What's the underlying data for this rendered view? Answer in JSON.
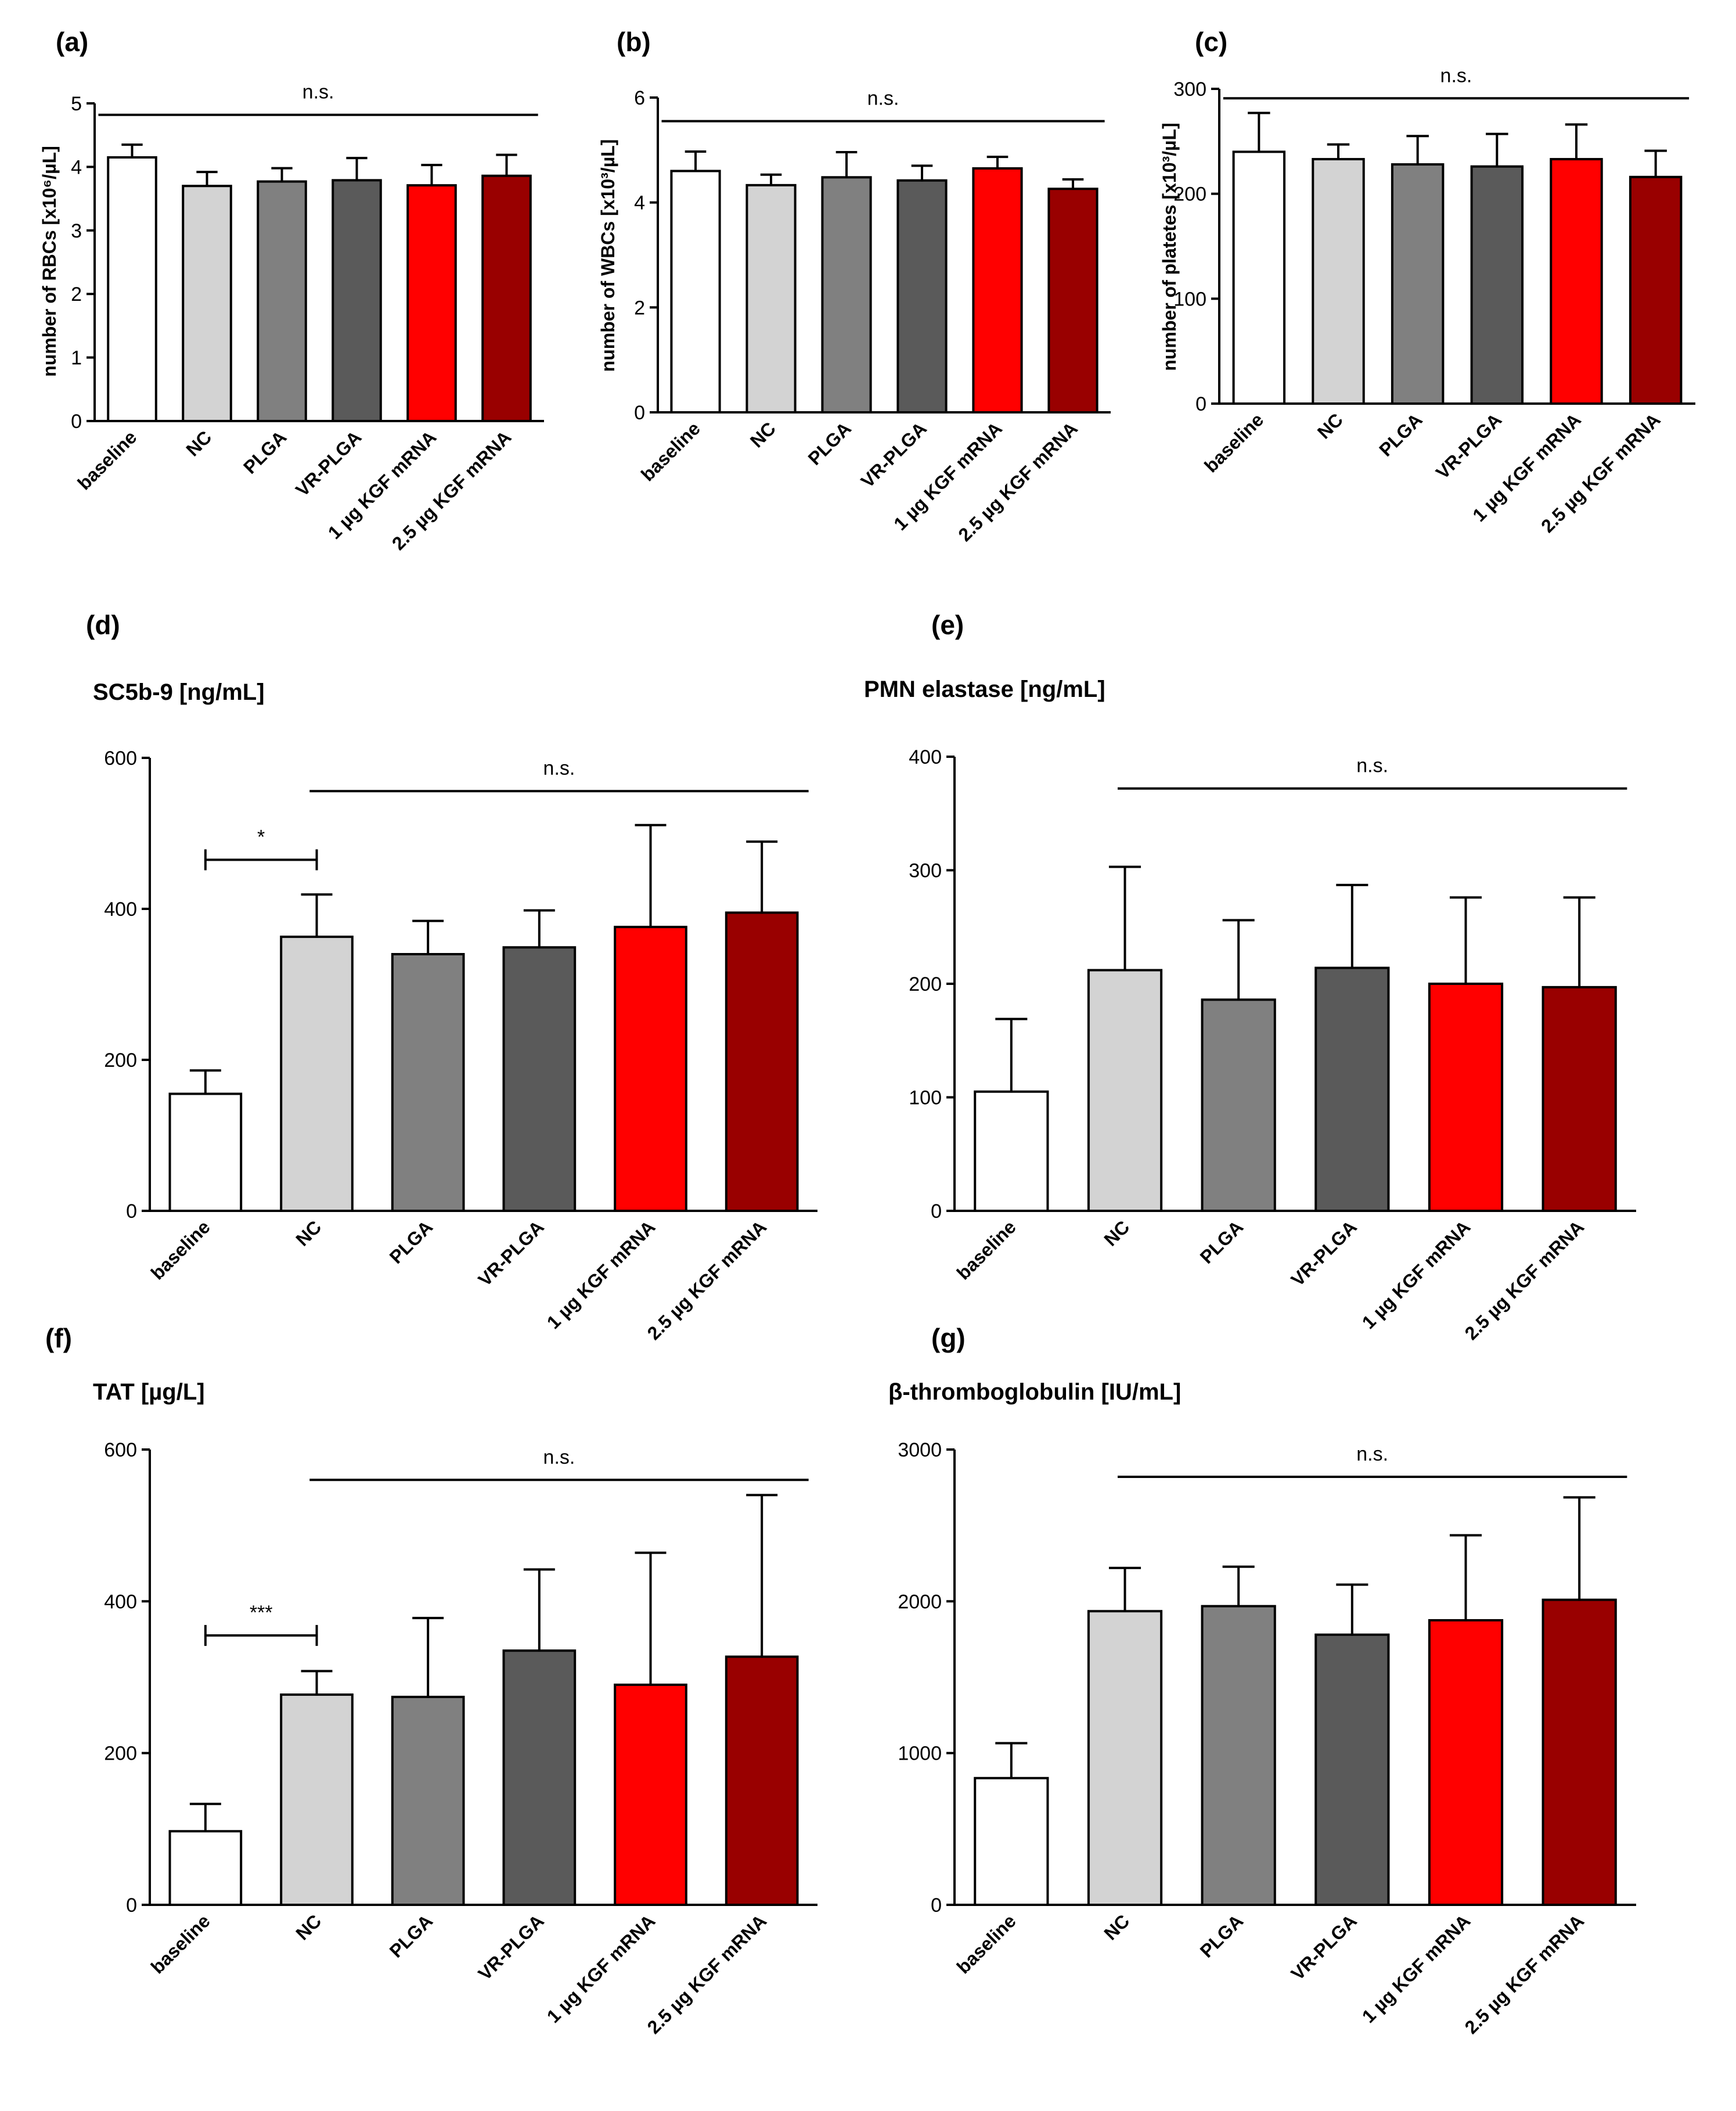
{
  "colors": {
    "baseline": "#ffffff",
    "NC": "#d3d3d3",
    "PLGA": "#808080",
    "VR-PLGA": "#5a5a5a",
    "1 µg KGF mRNA": "#ff0000",
    "2.5 µg KGF mRNA": "#990000"
  },
  "chart_data": [
    {
      "id": "a",
      "letter": "(a)",
      "type": "bar",
      "title": "",
      "ylabel": "number of RBCs [x10⁶/µL]",
      "categories": [
        "baseline",
        "NC",
        "PLGA",
        "VR-PLGA",
        "1 µg KGF mRNA",
        "2.5 µg KGF mRNA"
      ],
      "values": [
        4.15,
        3.7,
        3.77,
        3.79,
        3.71,
        3.86
      ],
      "errors": [
        0.2,
        0.22,
        0.21,
        0.35,
        0.32,
        0.33
      ],
      "ylim": [
        0,
        5
      ],
      "yticks": [
        0,
        1,
        2,
        3,
        4,
        5
      ],
      "annotations": [
        {
          "type": "line",
          "from": 0,
          "to": 5,
          "y": 4.82,
          "label": "n.s."
        }
      ]
    },
    {
      "id": "b",
      "letter": "(b)",
      "type": "bar",
      "title": "",
      "ylabel": "number of WBCs [x10³/µL]",
      "categories": [
        "baseline",
        "NC",
        "PLGA",
        "VR-PLGA",
        "1 µg KGF mRNA",
        "2.5 µg KGF mRNA"
      ],
      "values": [
        4.6,
        4.33,
        4.48,
        4.42,
        4.65,
        4.26
      ],
      "errors": [
        0.37,
        0.2,
        0.48,
        0.28,
        0.22,
        0.18
      ],
      "ylim": [
        0,
        6
      ],
      "yticks": [
        0,
        2,
        4,
        6
      ],
      "annotations": [
        {
          "type": "line",
          "from": 0,
          "to": 5,
          "y": 5.55,
          "label": "n.s."
        }
      ]
    },
    {
      "id": "c",
      "letter": "(c)",
      "type": "bar",
      "title": "",
      "ylabel": "number of platetes [x10³/µL]",
      "categories": [
        "baseline",
        "NC",
        "PLGA",
        "VR-PLGA",
        "1 µg KGF mRNA",
        "2.5 µg KGF mRNA"
      ],
      "values": [
        240,
        233,
        228,
        226,
        233,
        216
      ],
      "errors": [
        37,
        14,
        27,
        31,
        33,
        25
      ],
      "ylim": [
        0,
        300
      ],
      "yticks": [
        0,
        100,
        200,
        300
      ],
      "annotations": [
        {
          "type": "line",
          "from": 0,
          "to": 5,
          "y": 291,
          "label": "n.s."
        }
      ]
    },
    {
      "id": "d",
      "letter": "(d)",
      "type": "bar",
      "title": "SC5b-9 [ng/mL]",
      "ylabel": "",
      "categories": [
        "baseline",
        "NC",
        "PLGA",
        "VR-PLGA",
        "1 µg KGF mRNA",
        "2.5 µg KGF mRNA"
      ],
      "values": [
        155,
        363,
        340,
        349,
        376,
        395
      ],
      "errors": [
        31,
        56,
        44,
        49,
        135,
        94
      ],
      "ylim": [
        0,
        600
      ],
      "yticks": [
        0,
        200,
        400,
        600
      ],
      "annotations": [
        {
          "type": "line",
          "from": 1,
          "to": 5,
          "y": 556,
          "label": "n.s."
        },
        {
          "type": "bracket",
          "from": 0,
          "to": 1,
          "y": 465,
          "label": "*"
        }
      ]
    },
    {
      "id": "e",
      "letter": "(e)",
      "type": "bar",
      "title": "PMN elastase [ng/mL]",
      "ylabel": "",
      "categories": [
        "baseline",
        "NC",
        "PLGA",
        "VR-PLGA",
        "1 µg KGF mRNA",
        "2.5 µg KGF mRNA"
      ],
      "values": [
        105,
        212,
        186,
        214,
        200,
        197
      ],
      "errors": [
        64,
        91,
        70,
        73,
        76,
        79
      ],
      "ylim": [
        0,
        400
      ],
      "yticks": [
        0,
        100,
        200,
        300,
        400
      ],
      "annotations": [
        {
          "type": "line",
          "from": 1,
          "to": 5,
          "y": 372,
          "label": "n.s."
        }
      ]
    },
    {
      "id": "f",
      "letter": "(f)",
      "type": "bar",
      "title": "TAT [µg/L]",
      "ylabel": "",
      "categories": [
        "baseline",
        "NC",
        "PLGA",
        "VR-PLGA",
        "1 µg KGF mRNA",
        "2.5 µg KGF mRNA"
      ],
      "values": [
        97,
        277,
        274,
        335,
        290,
        327
      ],
      "errors": [
        36,
        31,
        104,
        107,
        174,
        213
      ],
      "ylim": [
        0,
        600
      ],
      "yticks": [
        0,
        200,
        400,
        600
      ],
      "annotations": [
        {
          "type": "line",
          "from": 1,
          "to": 5,
          "y": 560,
          "label": "n.s."
        },
        {
          "type": "bracket",
          "from": 0,
          "to": 1,
          "y": 355,
          "label": "***"
        }
      ]
    },
    {
      "id": "g",
      "letter": "(g)",
      "type": "bar",
      "title": "β-thromboglobulin [IU/mL]",
      "ylabel": "",
      "categories": [
        "baseline",
        "NC",
        "PLGA",
        "VR-PLGA",
        "1 µg KGF mRNA",
        "2.5 µg KGF mRNA"
      ],
      "values": [
        835,
        1935,
        1968,
        1780,
        1875,
        2010
      ],
      "errors": [
        230,
        285,
        260,
        330,
        560,
        675
      ],
      "ylim": [
        0,
        3000
      ],
      "yticks": [
        0,
        1000,
        2000,
        3000
      ],
      "annotations": [
        {
          "type": "line",
          "from": 1,
          "to": 5,
          "y": 2820,
          "label": "n.s."
        }
      ]
    }
  ]
}
